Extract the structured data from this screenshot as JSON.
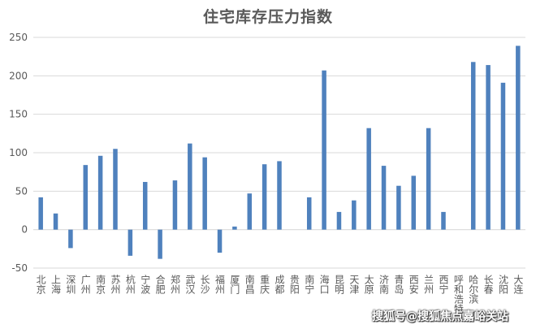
{
  "chart_data": {
    "type": "bar",
    "title": "住宅库存压力指数",
    "categories": [
      "北京",
      "上海",
      "深圳",
      "广州",
      "南京",
      "苏州",
      "杭州",
      "宁波",
      "合肥",
      "郑州",
      "武汉",
      "长沙",
      "福州",
      "厦门",
      "南昌",
      "重庆",
      "成都",
      "贵阳",
      "南宁",
      "海口",
      "昆明",
      "天津",
      "太原",
      "济南",
      "青岛",
      "西安",
      "兰州",
      "西宁",
      "呼和浩特",
      "哈尔滨",
      "长春",
      "沈阳",
      "大连"
    ],
    "values": [
      42,
      21,
      -24,
      84,
      96,
      105,
      -34,
      62,
      -38,
      64,
      112,
      94,
      -30,
      4,
      47,
      85,
      89,
      null,
      42,
      207,
      23,
      38,
      132,
      83,
      57,
      70,
      132,
      23,
      null,
      218,
      214,
      191,
      239
    ],
    "ylim": [
      -50,
      250
    ],
    "yticks": [
      -50,
      0,
      50,
      100,
      150,
      200,
      250
    ],
    "grid": true,
    "bar_color": "#4F81BD",
    "grid_color": "#D9D9D9"
  },
  "watermark": "搜狐号@搜狐焦点嘉峪关站"
}
